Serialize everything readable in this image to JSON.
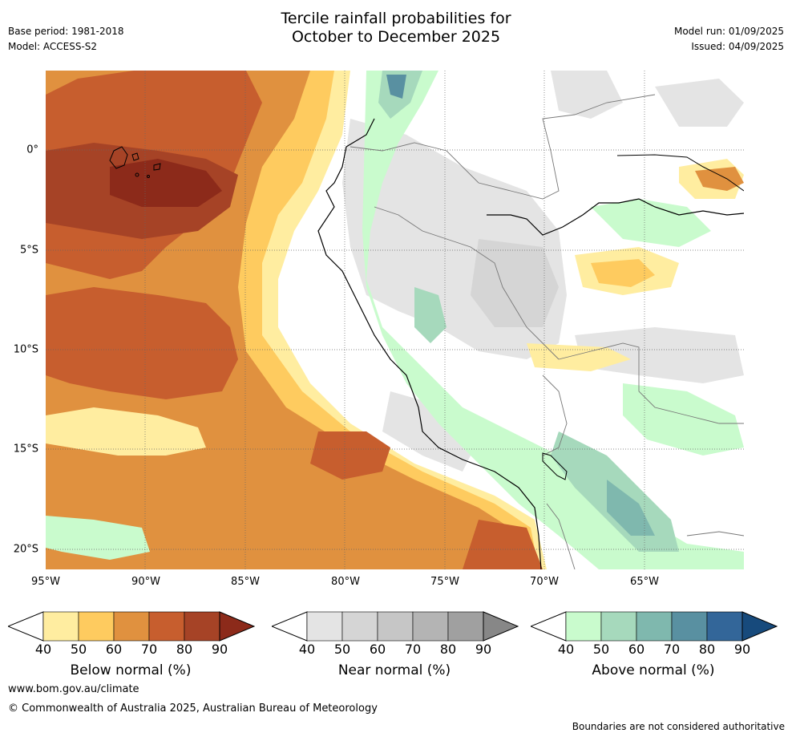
{
  "header": {
    "title_line1": "Tercile rainfall probabilities for",
    "title_line2": "October to December 2025",
    "base_period": "Base period: 1981-2018",
    "model": "Model: ACCESS-S2",
    "model_run": "Model run: 01/09/2025",
    "issued": "Issued: 04/09/2025"
  },
  "map": {
    "lat_labels": [
      "0°",
      "5°S",
      "10°S",
      "15°S",
      "20°S"
    ],
    "lon_labels": [
      "95°W",
      "90°W",
      "85°W",
      "80°W",
      "75°W",
      "70°W",
      "65°W"
    ],
    "extent": {
      "lon_min": -95,
      "lon_max": -60,
      "lat_min": -21,
      "lat_max": 4
    },
    "gridlines": true
  },
  "legends": [
    {
      "name": "Below normal (%)",
      "ticks": [
        "40",
        "50",
        "60",
        "70",
        "80",
        "90"
      ],
      "colors": [
        "#ffeda0",
        "#fecb5f",
        "#e0913f",
        "#c75e2e",
        "#a64326",
        "#8c2a1a"
      ]
    },
    {
      "name": "Near normal (%)",
      "ticks": [
        "40",
        "50",
        "60",
        "70",
        "80",
        "90"
      ],
      "colors": [
        "#e4e4e4",
        "#d5d5d5",
        "#c6c6c6",
        "#b4b4b4",
        "#a0a0a0",
        "#878787"
      ]
    },
    {
      "name": "Above normal (%)",
      "ticks": [
        "40",
        "50",
        "60",
        "70",
        "80",
        "90"
      ],
      "colors": [
        "#c9fbcd",
        "#a6d9bc",
        "#7fb8ae",
        "#5990a1",
        "#336699",
        "#174a7c"
      ]
    }
  ],
  "footer": {
    "url": "www.bom.gov.au/climate",
    "copyright": "© Commonwealth of Australia 2025, Australian Bureau of Meteorology",
    "disclaimer": "Boundaries are not considered authoritative"
  }
}
